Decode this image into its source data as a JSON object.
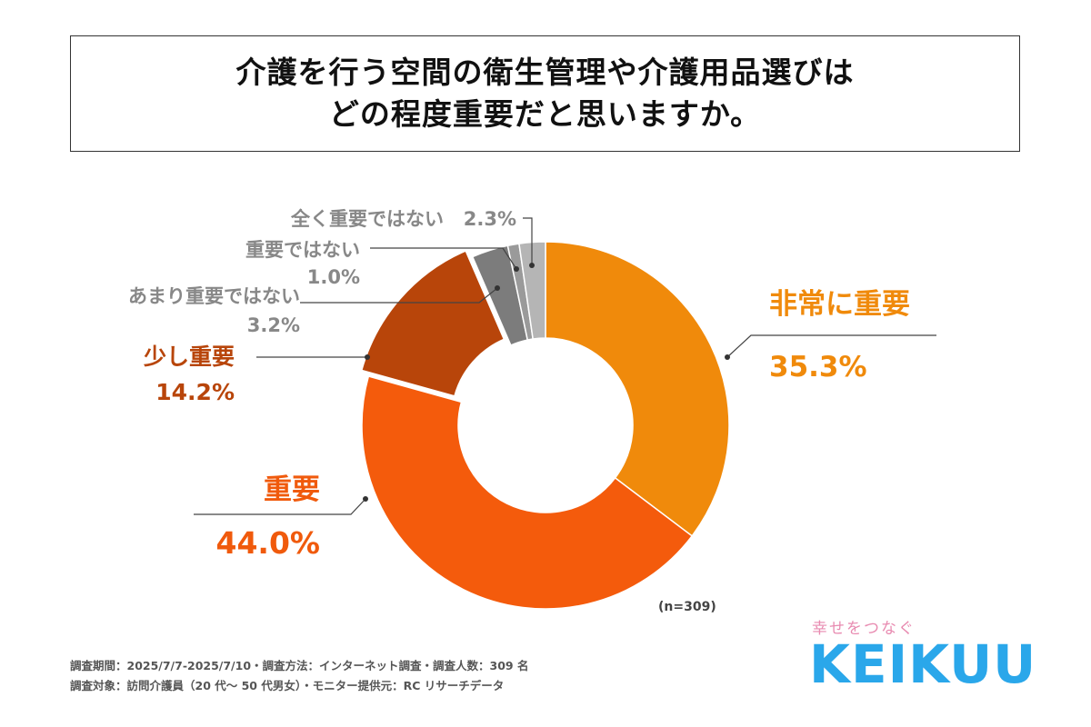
{
  "header": {
    "title_line1": "介護を行う空間の衛生管理や介護用品選びは",
    "title_line2": "どの程度重要だと思いますか。"
  },
  "chart_data": {
    "type": "pie",
    "donut": true,
    "n_label": "(n=309)",
    "slices": [
      {
        "label": "非常に重要",
        "value": 35.3,
        "value_label": "35.3%",
        "color": "#f08a0b",
        "label_color": "#f08a0b"
      },
      {
        "label": "重要",
        "value": 44.0,
        "value_label": "44.0%",
        "color": "#f45b0c",
        "label_color": "#f05a0c"
      },
      {
        "label": "少し重要",
        "value": 14.2,
        "value_label": "14.2%",
        "color": "#b8450a",
        "label_color": "#b8450a"
      },
      {
        "label": "あまり重要ではない",
        "value": 3.2,
        "value_label": "3.2%",
        "color": "#7c7c7c",
        "label_color": "#888888"
      },
      {
        "label": "重要ではない",
        "value": 1.0,
        "value_label": "1.0%",
        "color": "#9a9a9a",
        "label_color": "#888888"
      },
      {
        "label": "全く重要ではない",
        "value": 2.3,
        "value_label": "2.3%",
        "color": "#b5b5b5",
        "label_color": "#888888"
      }
    ]
  },
  "footer": {
    "line1": "調査期間：2025/7/7-2025/7/10・調査方法：インターネット調査・調査人数：309 名",
    "line2": "調査対象：訪問介護員（20 代～ 50 代男女）・モニター提供元：RC リサーチデータ"
  },
  "brand": {
    "tagline": "幸せをつなぐ",
    "logo": "KEIKUU"
  }
}
